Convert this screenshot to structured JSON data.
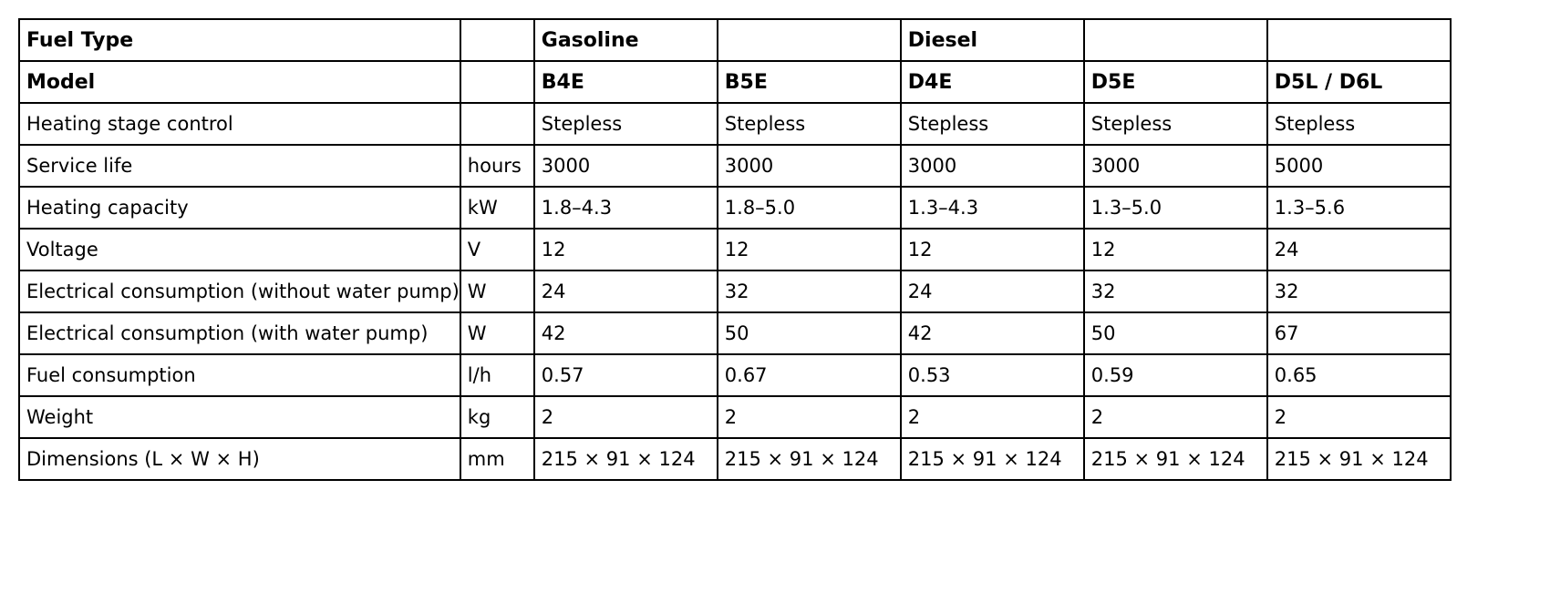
{
  "header_rows": [
    {
      "label": "Fuel Type",
      "unit": "",
      "values": [
        "Gasoline",
        "",
        "Diesel",
        "",
        ""
      ]
    },
    {
      "label": "Model",
      "unit": "",
      "values": [
        "B4E",
        "B5E",
        "D4E",
        "D5E",
        "D5L / D6L"
      ]
    }
  ],
  "rows": [
    {
      "label": "Heating stage control",
      "unit": "",
      "values": [
        "Stepless",
        "Stepless",
        "Stepless",
        "Stepless",
        "Stepless"
      ]
    },
    {
      "label": "Service life",
      "unit": "hours",
      "values": [
        "3000",
        "3000",
        "3000",
        "3000",
        "5000"
      ]
    },
    {
      "label": "Heating capacity",
      "unit": "kW",
      "values": [
        "1.8–4.3",
        "1.8–5.0",
        "1.3–4.3",
        "1.3–5.0",
        "1.3–5.6"
      ]
    },
    {
      "label": "Voltage",
      "unit": "V",
      "values": [
        "12",
        "12",
        "12",
        "12",
        "24"
      ]
    },
    {
      "label": "Electrical consumption (without water pump)",
      "unit": "W",
      "values": [
        "24",
        "32",
        "24",
        "32",
        "32"
      ]
    },
    {
      "label": "Electrical consumption (with water pump)",
      "unit": "W",
      "values": [
        "42",
        "50",
        "42",
        "50",
        "67"
      ]
    },
    {
      "label": "Fuel consumption",
      "unit": "l/h",
      "values": [
        "0.57",
        "0.67",
        "0.53",
        "0.59",
        "0.65"
      ]
    },
    {
      "label": "Weight",
      "unit": "kg",
      "values": [
        "2",
        "2",
        "2",
        "2",
        "2"
      ]
    },
    {
      "label": "Dimensions (L × W × H)",
      "unit": "mm",
      "values": [
        "215 × 91 × 124",
        "215 × 91 × 124",
        "215 × 91 × 124",
        "215 × 91 × 124",
        "215 × 91 × 124"
      ]
    }
  ]
}
